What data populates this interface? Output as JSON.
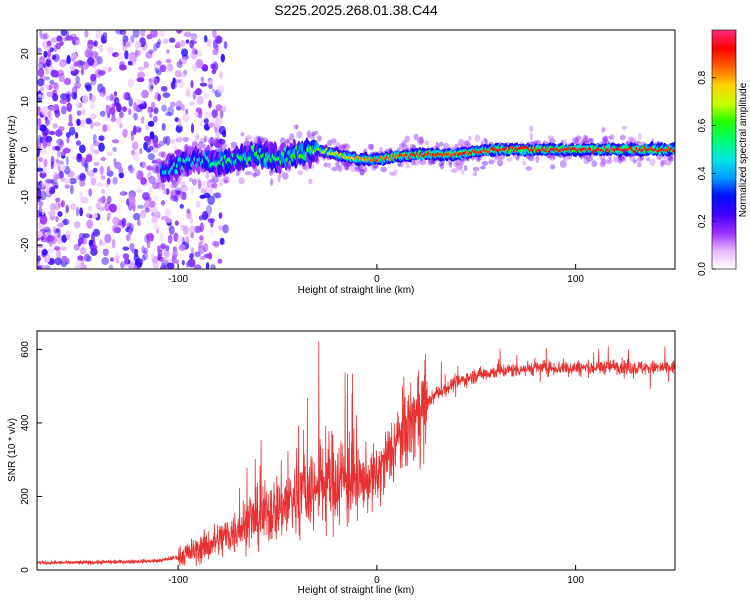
{
  "figure_title": "S225.2025.268.01.38.C44",
  "chart_data": [
    {
      "type": "heatmap",
      "panel": "top",
      "xlabel": "Height of straight line (km)",
      "ylabel": "Frequency (Hz)",
      "xlim": [
        -171,
        150
      ],
      "ylim": [
        -25,
        25
      ],
      "xticks": [
        -100,
        0,
        100
      ],
      "xtick_labels": [
        "-100",
        "0",
        "100"
      ],
      "yticks": [
        -20,
        -10,
        0,
        10,
        20
      ],
      "ytick_labels": [
        "-20",
        "-10",
        "0",
        "10",
        "20"
      ],
      "grid": false,
      "colorbar": {
        "label": "Normalized spectral amplitude",
        "range": [
          0,
          1
        ],
        "ticks": [
          0.0,
          0.2,
          0.4,
          0.6,
          0.8
        ],
        "tick_labels": [
          "0.0",
          "0.2",
          "0.4",
          "0.6",
          "0.8"
        ],
        "colors": [
          "#ffffff",
          "#e8b8ff",
          "#9a2bff",
          "#3d00ff",
          "#0010ff",
          "#00a0ff",
          "#00e8e0",
          "#00ff70",
          "#20ff00",
          "#c8ff00",
          "#ffd000",
          "#ff6000",
          "#ff0000",
          "#ff2a80"
        ]
      },
      "ridge": {
        "description_points_x": [
          -171,
          -110,
          -100,
          -90,
          -80,
          -70,
          -60,
          -50,
          -40,
          -30,
          -20,
          -10,
          0,
          20,
          40,
          60,
          80,
          100,
          120,
          150
        ],
        "frequency_hz": [
          0,
          -5,
          -3,
          -2,
          -3,
          -2,
          -1,
          -2,
          -1,
          0,
          -1,
          -2,
          -2,
          -1,
          -1,
          0,
          0,
          0,
          0,
          0
        ],
        "amplitude": [
          0.1,
          0.35,
          0.45,
          0.4,
          0.5,
          0.5,
          0.55,
          0.5,
          0.55,
          0.6,
          0.7,
          0.75,
          0.8,
          0.85,
          0.85,
          0.85,
          0.9,
          0.9,
          0.9,
          0.9
        ]
      }
    },
    {
      "type": "line",
      "panel": "bottom",
      "xlabel": "Height of straight line (km)",
      "ylabel": "SNR (10 * v/v)",
      "xlim": [
        -171,
        150
      ],
      "ylim": [
        0,
        650
      ],
      "xticks": [
        -100,
        0,
        100
      ],
      "xtick_labels": [
        "-100",
        "0",
        "100"
      ],
      "yticks": [
        0,
        200,
        400,
        600
      ],
      "ytick_labels": [
        "0",
        "200",
        "400",
        "600"
      ],
      "grid": false,
      "series": [
        {
          "name": "SNR",
          "color": "#e83232",
          "x": [
            -171,
            -150,
            -130,
            -110,
            -100,
            -90,
            -80,
            -70,
            -60,
            -50,
            -40,
            -30,
            -20,
            -10,
            0,
            10,
            20,
            30,
            40,
            50,
            60,
            70,
            80,
            90,
            100,
            110,
            120,
            130,
            140,
            150
          ],
          "y": [
            20,
            20,
            22,
            25,
            35,
            55,
            80,
            110,
            140,
            170,
            200,
            230,
            250,
            240,
            250,
            350,
            420,
            480,
            510,
            530,
            540,
            545,
            550,
            550,
            550,
            550,
            555,
            550,
            550,
            550
          ]
        }
      ]
    }
  ]
}
